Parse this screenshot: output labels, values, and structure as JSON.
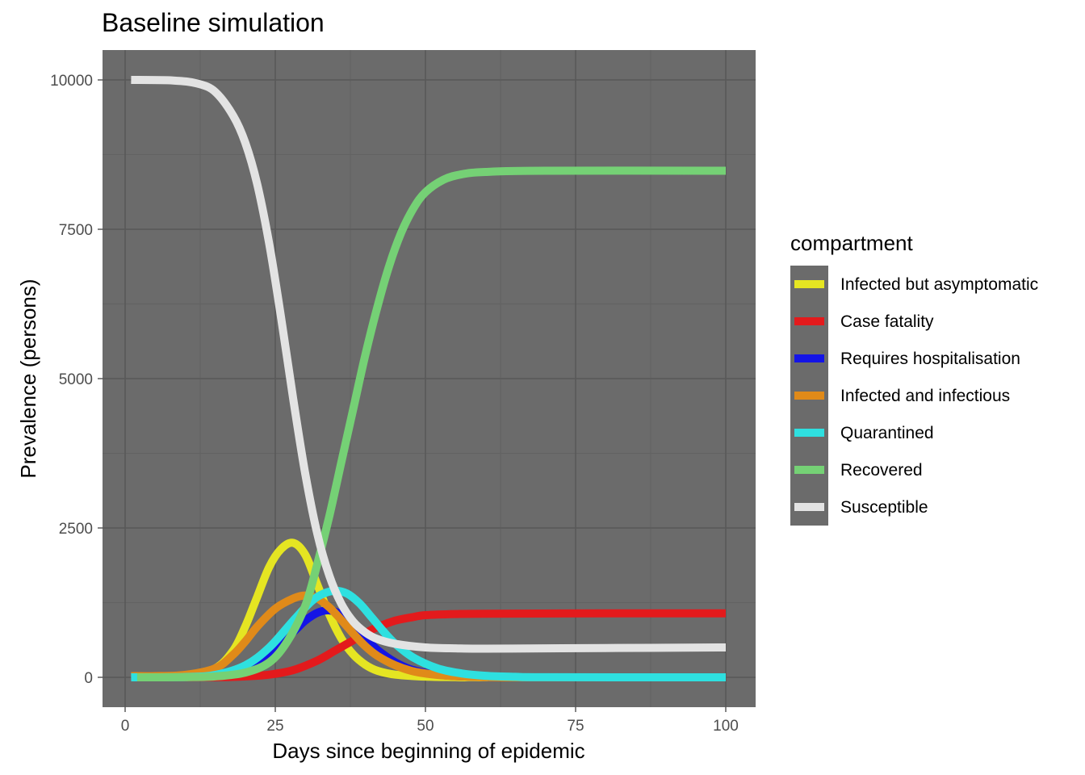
{
  "chart_data": {
    "type": "line",
    "title": "Baseline simulation",
    "xlabel": "Days since beginning of epidemic",
    "ylabel": "Prevalence (persons)",
    "xlim": [
      -3,
      105
    ],
    "ylim": [
      -500,
      10500
    ],
    "x_ticks": [
      0,
      25,
      50,
      75,
      100
    ],
    "x_tick_labels": [
      "0",
      "25",
      "50",
      "75",
      "100"
    ],
    "y_ticks": [
      0,
      2500,
      5000,
      7500,
      10000
    ],
    "y_tick_labels": [
      "0",
      "2500",
      "5000",
      "7500",
      "10000"
    ],
    "grid": true,
    "legend_title": "compartment",
    "legend_position": "right",
    "colors": {
      "panel_background": "#6b6b6b",
      "grid_major": "#585858",
      "grid_minor": "#626262"
    },
    "series": [
      {
        "name": "Infected but asymptomatic",
        "color": "#e5e522",
        "points": [
          [
            1,
            0
          ],
          [
            5,
            5
          ],
          [
            10,
            30
          ],
          [
            15,
            150
          ],
          [
            18,
            450
          ],
          [
            20,
            850
          ],
          [
            22,
            1350
          ],
          [
            24,
            1850
          ],
          [
            26,
            2150
          ],
          [
            28,
            2250
          ],
          [
            30,
            2050
          ],
          [
            32,
            1550
          ],
          [
            34,
            1050
          ],
          [
            36,
            650
          ],
          [
            38,
            380
          ],
          [
            40,
            210
          ],
          [
            42,
            110
          ],
          [
            45,
            45
          ],
          [
            50,
            12
          ],
          [
            55,
            3
          ],
          [
            60,
            0
          ],
          [
            100,
            0
          ]
        ]
      },
      {
        "name": "Case fatality",
        "color": "#e31a1c",
        "points": [
          [
            1,
            0
          ],
          [
            15,
            2
          ],
          [
            20,
            15
          ],
          [
            24,
            45
          ],
          [
            28,
            120
          ],
          [
            32,
            280
          ],
          [
            35,
            450
          ],
          [
            38,
            620
          ],
          [
            40,
            740
          ],
          [
            42,
            840
          ],
          [
            45,
            950
          ],
          [
            48,
            1010
          ],
          [
            50,
            1040
          ],
          [
            55,
            1060
          ],
          [
            60,
            1065
          ],
          [
            80,
            1070
          ],
          [
            100,
            1070
          ]
        ]
      },
      {
        "name": "Requires hospitalisation",
        "color": "#1414e6",
        "points": [
          [
            1,
            0
          ],
          [
            10,
            5
          ],
          [
            15,
            40
          ],
          [
            20,
            180
          ],
          [
            24,
            420
          ],
          [
            28,
            760
          ],
          [
            30,
            950
          ],
          [
            32,
            1080
          ],
          [
            34,
            1120
          ],
          [
            36,
            1050
          ],
          [
            38,
            880
          ],
          [
            40,
            660
          ],
          [
            42,
            460
          ],
          [
            45,
            250
          ],
          [
            48,
            120
          ],
          [
            52,
            45
          ],
          [
            56,
            15
          ],
          [
            60,
            5
          ],
          [
            65,
            0
          ],
          [
            100,
            0
          ]
        ]
      },
      {
        "name": "Infected and infectious",
        "color": "#e08a19",
        "points": [
          [
            1,
            20
          ],
          [
            5,
            20
          ],
          [
            10,
            40
          ],
          [
            15,
            150
          ],
          [
            18,
            380
          ],
          [
            20,
            600
          ],
          [
            22,
            850
          ],
          [
            25,
            1150
          ],
          [
            28,
            1320
          ],
          [
            30,
            1370
          ],
          [
            32,
            1320
          ],
          [
            34,
            1170
          ],
          [
            36,
            960
          ],
          [
            38,
            730
          ],
          [
            40,
            520
          ],
          [
            42,
            360
          ],
          [
            45,
            200
          ],
          [
            48,
            100
          ],
          [
            52,
            40
          ],
          [
            56,
            15
          ],
          [
            60,
            5
          ],
          [
            65,
            0
          ],
          [
            100,
            0
          ]
        ]
      },
      {
        "name": "Quarantined",
        "color": "#2ee0e0",
        "points": [
          [
            1,
            0
          ],
          [
            10,
            5
          ],
          [
            15,
            40
          ],
          [
            20,
            200
          ],
          [
            24,
            500
          ],
          [
            28,
            950
          ],
          [
            31,
            1270
          ],
          [
            33,
            1400
          ],
          [
            35,
            1450
          ],
          [
            37,
            1400
          ],
          [
            39,
            1240
          ],
          [
            41,
            1010
          ],
          [
            43,
            770
          ],
          [
            45,
            560
          ],
          [
            48,
            330
          ],
          [
            52,
            150
          ],
          [
            56,
            65
          ],
          [
            60,
            25
          ],
          [
            65,
            8
          ],
          [
            70,
            2
          ],
          [
            100,
            0
          ]
        ]
      },
      {
        "name": "Recovered",
        "color": "#75d175",
        "points": [
          [
            2,
            0
          ],
          [
            10,
            2
          ],
          [
            15,
            15
          ],
          [
            20,
            80
          ],
          [
            24,
            250
          ],
          [
            27,
            600
          ],
          [
            30,
            1200
          ],
          [
            32,
            1900
          ],
          [
            34,
            2700
          ],
          [
            36,
            3600
          ],
          [
            38,
            4500
          ],
          [
            40,
            5400
          ],
          [
            42,
            6200
          ],
          [
            44,
            6900
          ],
          [
            46,
            7450
          ],
          [
            48,
            7850
          ],
          [
            50,
            8120
          ],
          [
            53,
            8330
          ],
          [
            56,
            8420
          ],
          [
            60,
            8460
          ],
          [
            70,
            8480
          ],
          [
            100,
            8480
          ]
        ]
      },
      {
        "name": "Susceptible",
        "color": "#e3e3e3",
        "points": [
          [
            1,
            10000
          ],
          [
            8,
            9990
          ],
          [
            12,
            9940
          ],
          [
            15,
            9800
          ],
          [
            18,
            9400
          ],
          [
            20,
            8950
          ],
          [
            22,
            8250
          ],
          [
            24,
            7250
          ],
          [
            26,
            6000
          ],
          [
            28,
            4650
          ],
          [
            30,
            3400
          ],
          [
            32,
            2400
          ],
          [
            34,
            1700
          ],
          [
            36,
            1230
          ],
          [
            38,
            930
          ],
          [
            40,
            750
          ],
          [
            42,
            640
          ],
          [
            45,
            560
          ],
          [
            50,
            500
          ],
          [
            55,
            485
          ],
          [
            60,
            480
          ],
          [
            80,
            490
          ],
          [
            100,
            500
          ]
        ]
      }
    ]
  }
}
